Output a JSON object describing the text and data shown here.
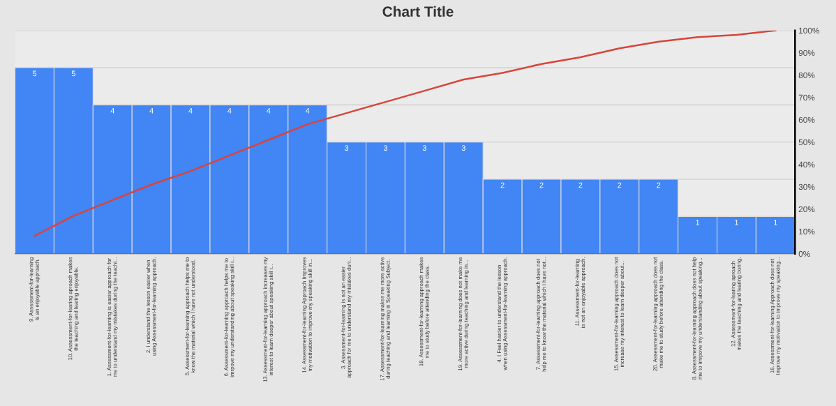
{
  "chart_data": {
    "type": "bar",
    "title": "Chart Title",
    "categories": [
      "9. Assessment-for-learning is an enjoyable approach.",
      "10. Assessment-for-learing aproach makes the teaching and learing enjoyable.",
      "1. Assessment-for-learning is easier approach for me to understand my mistakes during the teachi...",
      "2. I understand the lesson easier when using Assessment-for-learning approach.",
      "5. Assessment-for-learning approach helps me to know the material which I have not understood.",
      "6. Assessment-for-learning approach helps me to imrpove my understanding about speaking skill i...",
      "13. Assessment-for-learning approach increases my interest to learn deeper about speaking skill i...",
      "14. Assessment-for-learning Approach Improves my motivation to improve my speaking skill in...",
      "3. Assessment-for-learning is not an easier approach for me to understand my mistakes duri...",
      "17. Assessment-for-learning makes me more active during teaching and learning in Speaking Subject.",
      "18. Assessment-for-learning approach makes me to study before attending the class.",
      "19. Assessment-for-learning does not make me more active during teaching and learning in...",
      "4. I Feel harder to understand the lesson when using Assessment-for-learning approach.",
      "7. Assessment-for-learning approach does not help me to know the material which I have not...",
      "11. Assessment-for-learning is not an enjoyable approach.",
      "15. Assessment-for-learning approach does not increase my interest to learn deeper about...",
      "20. Assessment-for-learning approach does not make me to study before attending the class.",
      "8. Assessment-for-learning approach does not help me to imrpove my understanding about speaking...",
      "12. Assessment-for-learing aproach makes the teaching and learing boring.",
      "16. Assessment-for-learning Approach does not Improve my motivation to improve my speaking..."
    ],
    "series": [
      {
        "color": "#4285f4",
        "values": [
          5,
          5,
          4,
          4,
          4,
          4,
          4,
          4,
          3,
          3,
          3,
          3,
          2,
          2,
          2,
          2,
          2,
          1,
          1,
          1
        ],
        "value_labels": [
          "5",
          "5",
          "4",
          "4",
          "4",
          "4",
          "4",
          "4",
          "3",
          "3",
          "3",
          "3",
          "2",
          "2",
          "2",
          "2",
          "2",
          "1",
          "1",
          "1"
        ]
      },
      {
        "type": "line",
        "axis": "y2",
        "color": "#d9443a",
        "values": [
          8,
          17,
          24,
          31,
          37,
          44,
          51,
          58,
          63,
          68,
          73,
          78,
          81,
          85,
          88,
          92,
          95,
          97,
          98,
          100
        ]
      }
    ],
    "ylim": [
      0,
      6
    ],
    "yticks": [
      {
        "value": 1,
        "label": null
      },
      {
        "value": 2,
        "label": null
      },
      {
        "value": 3,
        "label": null
      },
      {
        "value": 4,
        "label": null
      },
      {
        "value": 5,
        "label": null
      },
      {
        "value": 6,
        "label": null
      }
    ],
    "y2lim": [
      0,
      100
    ],
    "y2ticks": [
      {
        "value": 0,
        "label": "0%"
      },
      {
        "value": 10,
        "label": "10%"
      },
      {
        "value": 20,
        "label": "20%"
      },
      {
        "value": 30,
        "label": "30%"
      },
      {
        "value": 40,
        "label": "40%"
      },
      {
        "value": 50,
        "label": "50%"
      },
      {
        "value": 60,
        "label": "60%"
      },
      {
        "value": 70,
        "label": "70%"
      },
      {
        "value": 80,
        "label": "80%"
      },
      {
        "value": 90,
        "label": "90%"
      },
      {
        "value": 100,
        "label": "100%"
      }
    ],
    "grid": "y",
    "marker": "none"
  }
}
